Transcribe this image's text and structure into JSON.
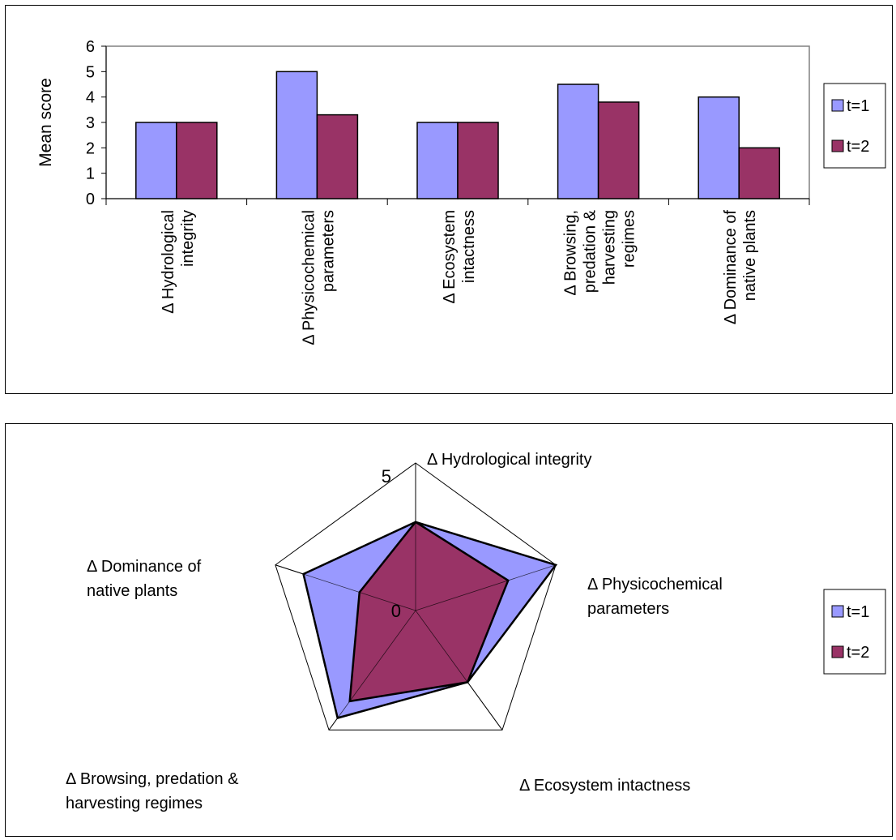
{
  "colors": {
    "t1": "#9999ff",
    "t2": "#993366",
    "border": "#000000",
    "plot_bg": "#ffffff"
  },
  "chart_data": [
    {
      "type": "bar",
      "ylabel": "Mean score",
      "ylim": [
        0,
        6
      ],
      "yticks": [
        "0",
        "1",
        "2",
        "3",
        "4",
        "5",
        "6"
      ],
      "categories": [
        "Δ  Hydrological integrity",
        "Δ  Physicochemical parameters",
        "Δ Ecosystem intactness",
        "Δ Browsing, predation & harvesting regimes",
        "Δ Dominance of native plants"
      ],
      "category_lines": [
        [
          "Δ  Hydrological",
          "integrity"
        ],
        [
          "Δ  Physicochemical",
          "parameters"
        ],
        [
          "Δ Ecosystem",
          "intactness"
        ],
        [
          "Δ Browsing,",
          "predation &",
          "harvesting",
          "regimes"
        ],
        [
          "Δ Dominance of",
          "native plants"
        ]
      ],
      "series": [
        {
          "name": "t=1",
          "values": [
            3,
            5,
            3,
            4.5,
            4
          ]
        },
        {
          "name": "t=2",
          "values": [
            3,
            3.3,
            3,
            3.8,
            2
          ]
        }
      ],
      "legend": "right",
      "grid": false
    },
    {
      "type": "radar",
      "range": [
        0,
        5
      ],
      "range_labels": [
        "0",
        "5"
      ],
      "axes": [
        "Δ Hydrological integrity",
        "Δ Physicochemical parameters",
        "Δ Ecosystem intactness",
        "Δ Browsing, predation & harvesting regimes",
        "Δ Dominance of native plants"
      ],
      "axis_lines": [
        [
          "Δ Hydrological integrity"
        ],
        [
          "Δ Physicochemical",
          "parameters"
        ],
        [
          "Δ Ecosystem intactness"
        ],
        [
          "Δ Browsing, predation &",
          "harvesting regimes"
        ],
        [
          "Δ Dominance of",
          "native plants"
        ]
      ],
      "series": [
        {
          "name": "t=1",
          "values": [
            3,
            5,
            3,
            4.5,
            4
          ]
        },
        {
          "name": "t=2",
          "values": [
            3,
            3.3,
            3,
            3.8,
            2
          ]
        }
      ],
      "legend": "right"
    }
  ]
}
